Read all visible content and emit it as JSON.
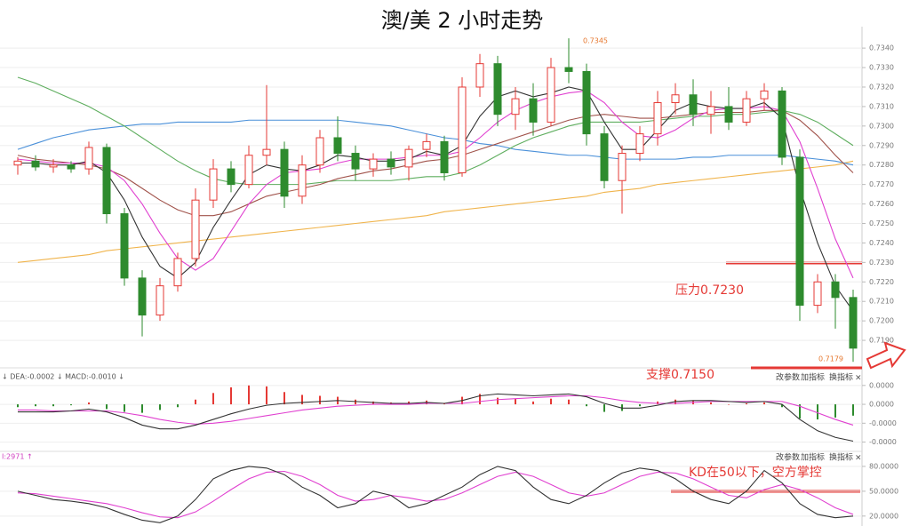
{
  "chart_data": [
    {
      "type": "candlestick",
      "title": "澳/美 2 小时走势",
      "open": [
        0.728,
        0.7282,
        0.7279,
        0.728,
        0.7278,
        0.7289,
        0.7255,
        0.7222,
        0.7203,
        0.7218,
        0.7232,
        0.7262,
        0.7278,
        0.727,
        0.7285,
        0.7288,
        0.7264,
        0.728,
        0.7294,
        0.7286,
        0.7278,
        0.7283,
        0.7279,
        0.7288,
        0.7292,
        0.7276,
        0.732,
        0.7332,
        0.7306,
        0.7314,
        0.7302,
        0.733,
        0.7328,
        0.7296,
        0.7272,
        0.7286,
        0.7296,
        0.7312,
        0.7316,
        0.7306,
        0.731,
        0.7302,
        0.7314,
        0.7318,
        0.7284,
        0.7208,
        0.722,
        0.7212
      ],
      "high": [
        0.7284,
        0.7285,
        0.7283,
        0.7282,
        0.7292,
        0.7291,
        0.7258,
        0.7226,
        0.7222,
        0.7235,
        0.7268,
        0.7283,
        0.7282,
        0.729,
        0.7321,
        0.7292,
        0.7285,
        0.7298,
        0.7305,
        0.729,
        0.7286,
        0.7287,
        0.729,
        0.7296,
        0.7295,
        0.7325,
        0.7337,
        0.7336,
        0.732,
        0.7322,
        0.7335,
        0.7345,
        0.7332,
        0.73,
        0.729,
        0.73,
        0.7318,
        0.7322,
        0.7324,
        0.7318,
        0.732,
        0.7318,
        0.7322,
        0.732,
        0.7288,
        0.7224,
        0.7224,
        0.7216
      ],
      "low": [
        0.7275,
        0.7277,
        0.7276,
        0.7276,
        0.7275,
        0.725,
        0.7218,
        0.7192,
        0.72,
        0.7215,
        0.7228,
        0.7258,
        0.7266,
        0.7268,
        0.728,
        0.7258,
        0.726,
        0.7276,
        0.7282,
        0.7272,
        0.7274,
        0.7275,
        0.7272,
        0.7284,
        0.7272,
        0.7274,
        0.7315,
        0.73,
        0.7298,
        0.7295,
        0.73,
        0.7322,
        0.729,
        0.7268,
        0.7255,
        0.7282,
        0.729,
        0.7306,
        0.73,
        0.7296,
        0.7298,
        0.73,
        0.7308,
        0.728,
        0.72,
        0.7204,
        0.7196,
        0.7179
      ],
      "close": [
        0.7282,
        0.7279,
        0.728,
        0.7278,
        0.7289,
        0.7255,
        0.7222,
        0.7203,
        0.7218,
        0.7232,
        0.7262,
        0.7278,
        0.727,
        0.7285,
        0.7288,
        0.7264,
        0.728,
        0.7294,
        0.7286,
        0.7278,
        0.7283,
        0.7279,
        0.7288,
        0.7292,
        0.7276,
        0.732,
        0.7332,
        0.7306,
        0.7314,
        0.7302,
        0.733,
        0.7328,
        0.7296,
        0.7272,
        0.7286,
        0.7296,
        0.7312,
        0.7316,
        0.7306,
        0.731,
        0.7302,
        0.7314,
        0.7318,
        0.7284,
        0.7208,
        0.722,
        0.7212,
        0.7186
      ],
      "up_color": "#e53935",
      "down_color": "#2e8b2e",
      "lines": [
        {
          "color": "#f0b44c",
          "values": [
            0.723,
            0.7231,
            0.7232,
            0.7233,
            0.7234,
            0.7236,
            0.7237,
            0.7238,
            0.7239,
            0.724,
            0.7241,
            0.7242,
            0.7243,
            0.7244,
            0.7245,
            0.7246,
            0.7247,
            0.7248,
            0.7249,
            0.725,
            0.7251,
            0.7252,
            0.7253,
            0.7254,
            0.7256,
            0.7257,
            0.7258,
            0.7259,
            0.726,
            0.7261,
            0.7262,
            0.7263,
            0.7264,
            0.7266,
            0.7267,
            0.7268,
            0.727,
            0.7271,
            0.7272,
            0.7273,
            0.7274,
            0.7275,
            0.7276,
            0.7277,
            0.7278,
            0.7279,
            0.728,
            0.7282
          ]
        },
        {
          "color": "#4a90d9",
          "values": [
            0.7288,
            0.7291,
            0.7294,
            0.7296,
            0.7298,
            0.7299,
            0.73,
            0.7301,
            0.7301,
            0.7302,
            0.7302,
            0.7302,
            0.7302,
            0.7303,
            0.7303,
            0.7303,
            0.7303,
            0.7303,
            0.7303,
            0.7302,
            0.7301,
            0.73,
            0.7298,
            0.7296,
            0.7294,
            0.7293,
            0.7291,
            0.729,
            0.7288,
            0.7287,
            0.7286,
            0.7285,
            0.7285,
            0.7284,
            0.7283,
            0.7283,
            0.7283,
            0.7283,
            0.7284,
            0.7284,
            0.7285,
            0.7285,
            0.7285,
            0.7285,
            0.7284,
            0.7283,
            0.7282,
            0.728
          ]
        },
        {
          "color": "#5fae5f",
          "values": [
            0.7325,
            0.7322,
            0.7318,
            0.7314,
            0.731,
            0.7305,
            0.73,
            0.7294,
            0.7288,
            0.7282,
            0.7277,
            0.7273,
            0.7271,
            0.727,
            0.727,
            0.727,
            0.727,
            0.7271,
            0.7272,
            0.7272,
            0.7272,
            0.7272,
            0.7273,
            0.7274,
            0.7274,
            0.7276,
            0.728,
            0.7285,
            0.729,
            0.7294,
            0.7297,
            0.73,
            0.7302,
            0.7302,
            0.7302,
            0.7302,
            0.7303,
            0.7304,
            0.7305,
            0.7305,
            0.7306,
            0.7306,
            0.7307,
            0.7308,
            0.7306,
            0.7302,
            0.7296,
            0.729
          ]
        },
        {
          "color": "#a0524a",
          "values": [
            0.7285,
            0.7283,
            0.7282,
            0.7281,
            0.728,
            0.7278,
            0.7274,
            0.7268,
            0.7262,
            0.7257,
            0.7254,
            0.7254,
            0.7256,
            0.726,
            0.7264,
            0.7266,
            0.7268,
            0.727,
            0.7273,
            0.7275,
            0.7277,
            0.7278,
            0.728,
            0.7282,
            0.7283,
            0.7285,
            0.7288,
            0.7291,
            0.7294,
            0.7297,
            0.73,
            0.7303,
            0.7305,
            0.7306,
            0.7305,
            0.7304,
            0.7304,
            0.7305,
            0.7306,
            0.7307,
            0.7307,
            0.7307,
            0.7308,
            0.7308,
            0.7303,
            0.7295,
            0.7285,
            0.7276
          ]
        },
        {
          "color": "#e040d0",
          "values": [
            0.7283,
            0.7282,
            0.7281,
            0.7281,
            0.7281,
            0.7279,
            0.7272,
            0.726,
            0.7245,
            0.7232,
            0.7226,
            0.7232,
            0.7246,
            0.726,
            0.727,
            0.7276,
            0.7277,
            0.7278,
            0.7281,
            0.7283,
            0.7283,
            0.7283,
            0.7284,
            0.7285,
            0.7285,
            0.7287,
            0.7294,
            0.7302,
            0.7308,
            0.7312,
            0.7315,
            0.7317,
            0.7318,
            0.7312,
            0.7302,
            0.7295,
            0.7294,
            0.7298,
            0.7304,
            0.7308,
            0.7309,
            0.7309,
            0.731,
            0.7308,
            0.7292,
            0.7268,
            0.7242,
            0.7222
          ]
        },
        {
          "color": "#333333",
          "values": [
            0.7281,
            0.7281,
            0.728,
            0.728,
            0.7282,
            0.7276,
            0.7262,
            0.7243,
            0.7228,
            0.7222,
            0.723,
            0.7248,
            0.7262,
            0.7275,
            0.728,
            0.7278,
            0.7277,
            0.728,
            0.7285,
            0.7284,
            0.7282,
            0.7282,
            0.7283,
            0.7287,
            0.7285,
            0.729,
            0.7305,
            0.7315,
            0.7318,
            0.7315,
            0.7317,
            0.732,
            0.7318,
            0.7302,
            0.7288,
            0.7288,
            0.7298,
            0.7308,
            0.7312,
            0.731,
            0.7309,
            0.7309,
            0.7312,
            0.7304,
            0.7268,
            0.724,
            0.7218,
            0.7205
          ]
        }
      ],
      "ylim": [
        0.718,
        0.7351
      ],
      "yticks": [
        {
          "value": 0.734,
          "label": "0.7340"
        },
        {
          "value": 0.733,
          "label": "0.7330"
        },
        {
          "value": 0.732,
          "label": "0.7320"
        },
        {
          "value": 0.731,
          "label": "0.7310"
        },
        {
          "value": 0.73,
          "label": "0.7300"
        },
        {
          "value": 0.729,
          "label": "0.7290"
        },
        {
          "value": 0.728,
          "label": "0.7280"
        },
        {
          "value": 0.727,
          "label": "0.7270"
        },
        {
          "value": 0.726,
          "label": "0.7260"
        },
        {
          "value": 0.725,
          "label": "0.7250"
        },
        {
          "value": 0.724,
          "label": "0.7240"
        },
        {
          "value": 0.723,
          "label": "0.7230"
        },
        {
          "value": 0.722,
          "label": "0.7220"
        },
        {
          "value": 0.721,
          "label": "0.7210"
        },
        {
          "value": 0.72,
          "label": "0.7200"
        },
        {
          "value": 0.719,
          "label": "0.7190"
        }
      ],
      "grid": true,
      "annotations": [
        "0.7345",
        "0.7179",
        "压力0.7230",
        "支撑0.7150"
      ]
    },
    {
      "type": "macd",
      "header": "↓ DEA:-0.0002 ↓ MACD:-0.0010 ↓",
      "histogram": [
        -3e-06,
        -2e-06,
        -2e-06,
        -1e-06,
        2e-06,
        -5e-06,
        -8e-06,
        -9e-06,
        -6e-06,
        -3e-06,
        5e-06,
        1.2e-05,
        1.8e-05,
        2e-05,
        1.9e-05,
        1.3e-05,
        1e-05,
        9e-06,
        8e-06,
        5e-06,
        3e-06,
        2e-06,
        3e-06,
        4e-06,
        1e-06,
        8e-06,
        1.1e-05,
        7e-06,
        6e-06,
        3e-06,
        6e-06,
        5e-06,
        -2e-06,
        -8e-06,
        -7e-06,
        -2e-06,
        3e-06,
        5e-06,
        4e-06,
        2e-06,
        0,
        1e-06,
        2e-06,
        -3e-06,
        -1.5e-05,
        -1.6e-05,
        -1.4e-05,
        -1.2e-05
      ],
      "up_color": "#e53935",
      "down_color": "#2e8b2e",
      "lines": [
        {
          "color": "#e040d0",
          "values": [
            -6e-06,
            -6e-06,
            -7e-06,
            -7e-06,
            -7e-06,
            -7e-06,
            -9e-06,
            -1.2e-05,
            -1.6e-05,
            -1.9e-05,
            -2.1e-05,
            -2e-05,
            -1.8e-05,
            -1.5e-05,
            -1.2e-05,
            -9e-06,
            -6e-06,
            -4e-06,
            -2e-06,
            -1e-06,
            0,
            0,
            0,
            1e-06,
            1e-06,
            1e-06,
            3e-06,
            5e-06,
            6e-06,
            7e-06,
            8e-06,
            9e-06,
            9e-06,
            7e-06,
            4e-06,
            2e-06,
            1e-06,
            1e-06,
            2e-06,
            3e-06,
            3e-06,
            3e-06,
            3e-06,
            3e-06,
            -2e-06,
            -9e-06,
            -1.6e-05,
            -2.2e-05
          ]
        },
        {
          "color": "#333333",
          "values": [
            -8e-06,
            -8e-06,
            -8e-06,
            -7e-06,
            -5e-06,
            -8e-06,
            -1.4e-05,
            -2.2e-05,
            -2.6e-05,
            -2.6e-05,
            -2.2e-05,
            -1.6e-05,
            -1e-05,
            -5e-06,
            -1e-06,
            1e-06,
            2e-06,
            3e-06,
            4e-06,
            3e-06,
            2e-06,
            1e-06,
            1e-06,
            2e-06,
            1e-06,
            4e-06,
            9e-06,
            1.1e-05,
            1e-05,
            9e-06,
            1e-05,
            1.1e-05,
            8e-06,
            1e-06,
            -4e-06,
            -4e-06,
            -1e-06,
            3e-06,
            4e-06,
            4e-06,
            3e-06,
            2e-06,
            3e-06,
            0,
            -1.6e-05,
            -2.8e-05,
            -3.5e-05,
            -3.9e-05
          ]
        }
      ],
      "ylim": [
        -4.7e-05,
        3.3e-05
      ],
      "yticks": [
        {
          "value": 2e-05,
          "label": "0.0000"
        },
        {
          "value": 0,
          "label": "0.0000"
        },
        {
          "value": -2e-05,
          "label": "-0.0000"
        },
        {
          "value": -4e-05,
          "label": "-0.0000"
        }
      ],
      "buttons": [
        "改参数",
        "加指标",
        "换指标",
        "×"
      ]
    },
    {
      "type": "kdj",
      "header": "I:2971 ↑",
      "lines": [
        {
          "color": "#e040d0",
          "values": [
            48,
            47,
            44,
            41,
            38,
            35,
            30,
            24,
            19,
            18,
            25,
            38,
            52,
            65,
            73,
            74,
            68,
            58,
            45,
            38,
            40,
            45,
            42,
            38,
            40,
            48,
            58,
            68,
            73,
            68,
            58,
            48,
            44,
            48,
            58,
            68,
            73,
            72,
            65,
            55,
            45,
            42,
            52,
            58,
            52,
            42,
            30,
            22
          ]
        },
        {
          "color": "#333333",
          "values": [
            50,
            45,
            40,
            38,
            35,
            30,
            22,
            15,
            12,
            20,
            40,
            65,
            75,
            80,
            78,
            70,
            55,
            45,
            30,
            35,
            50,
            45,
            30,
            35,
            45,
            55,
            70,
            80,
            75,
            55,
            40,
            35,
            45,
            60,
            72,
            78,
            75,
            65,
            50,
            40,
            35,
            50,
            75,
            60,
            35,
            22,
            18,
            20
          ]
        }
      ],
      "ylim": [
        8,
        96
      ],
      "yticks": [
        {
          "value": 80,
          "label": "80.0000"
        },
        {
          "value": 50,
          "label": "50.0000"
        },
        {
          "value": 20,
          "label": "20.0000"
        }
      ],
      "buttons": [
        "改参数",
        "加指标",
        "换指标",
        "×"
      ],
      "annotations": [
        "KD在50以下，空方掌控"
      ]
    }
  ]
}
